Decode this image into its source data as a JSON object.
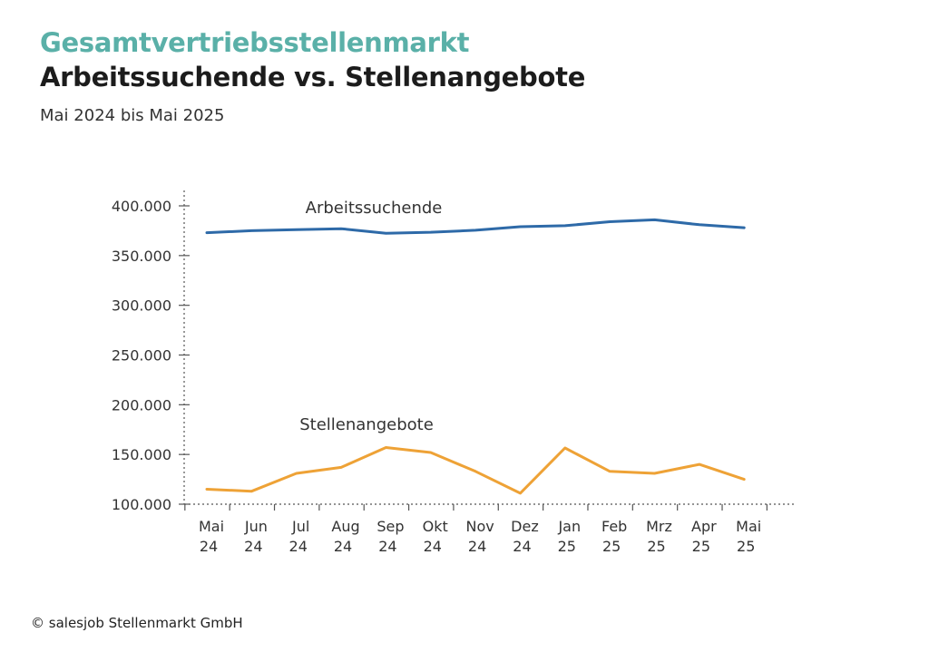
{
  "header": {
    "title": "Gesamtvertriebsstellenmarkt",
    "subtitle_title": "Arbeitssuchende vs. Stellenangebote",
    "period": "Mai 2024 bis Mai 2025"
  },
  "footer": {
    "copyright": "© salesjob Stellenmarkt GmbH"
  },
  "chart_data": {
    "type": "line",
    "title": "Arbeitssuchende vs. Stellenangebote",
    "subtitle": "Mai 2024 bis Mai 2025",
    "categories": [
      [
        "Mai",
        "24"
      ],
      [
        "Jun",
        "24"
      ],
      [
        "Jul",
        "24"
      ],
      [
        "Aug",
        "24"
      ],
      [
        "Sep",
        "24"
      ],
      [
        "Okt",
        "24"
      ],
      [
        "Nov",
        "24"
      ],
      [
        "Dez",
        "24"
      ],
      [
        "Jan",
        "25"
      ],
      [
        "Feb",
        "25"
      ],
      [
        "Mrz",
        "25"
      ],
      [
        "Apr",
        "25"
      ],
      [
        "Mai",
        "25"
      ]
    ],
    "y_ticks": [
      "100.000",
      "150.000",
      "200.000",
      "250.000",
      "300.000",
      "350.000",
      "400.000"
    ],
    "y_tick_values": [
      100000,
      150000,
      200000,
      250000,
      300000,
      350000,
      400000
    ],
    "ylim": [
      100000,
      400000
    ],
    "xlabel": "",
    "ylabel": "",
    "grid": false,
    "series": [
      {
        "name": "Arbeitssuchende",
        "color": "#2e6aa8",
        "values": [
          373000,
          375000,
          376000,
          377000,
          372500,
          373500,
          375500,
          379000,
          380000,
          384000,
          386000,
          381000,
          378000
        ]
      },
      {
        "name": "Stellenangebote",
        "color": "#eea236",
        "values": [
          115000,
          113000,
          131000,
          137000,
          157000,
          152000,
          133000,
          111000,
          156500,
          133000,
          131000,
          140000,
          125000
        ]
      }
    ]
  }
}
